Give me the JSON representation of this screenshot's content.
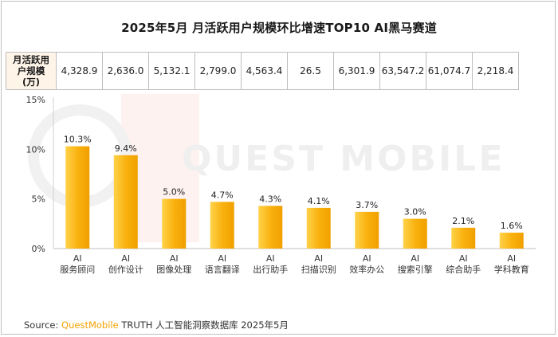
{
  "title": "2025年5月 月活跃用户规模环比增速TOP10 AI黑马赛道",
  "table": {
    "header_lines": [
      "月活跃用",
      "户规模",
      "(万)"
    ],
    "values": [
      "4,328.9",
      "2,636.0",
      "5,132.1",
      "2,799.0",
      "4,563.4",
      "26.5",
      "6,301.9",
      "63,547.2",
      "61,074.7",
      "2,218.4"
    ]
  },
  "watermark": "QUEST MOBILE",
  "chart_data": {
    "type": "bar",
    "categories": [
      [
        "AI",
        "服务顾问"
      ],
      [
        "AI",
        "创作设计"
      ],
      [
        "AI",
        "图像处理"
      ],
      [
        "AI",
        "语言翻译"
      ],
      [
        "AI",
        "出行助手"
      ],
      [
        "AI",
        "扫描识别"
      ],
      [
        "AI",
        "效率办公"
      ],
      [
        "AI",
        "搜索引擎"
      ],
      [
        "AI",
        "综合助手"
      ],
      [
        "AI",
        "学科教育"
      ]
    ],
    "values": [
      10.3,
      9.4,
      5.0,
      4.7,
      4.3,
      4.1,
      3.7,
      3.0,
      2.1,
      1.6
    ],
    "value_labels": [
      "10.3%",
      "9.4%",
      "5.0%",
      "4.7%",
      "4.3%",
      "4.1%",
      "3.7%",
      "3.0%",
      "2.1%",
      "1.6%"
    ],
    "yticks": [
      0,
      5,
      10,
      15
    ],
    "ytick_labels": [
      "0%",
      "5%",
      "10%",
      "15%"
    ],
    "ylim": [
      0,
      15
    ],
    "bar_color": "#f9b20f",
    "bar_color_light": "#ffd24a",
    "bar_color_dark": "#f0a000"
  },
  "source": {
    "label": "Source:",
    "brand": "QuestMobile",
    "text": "TRUTH 人工智能洞察数据库 2025年5月"
  }
}
